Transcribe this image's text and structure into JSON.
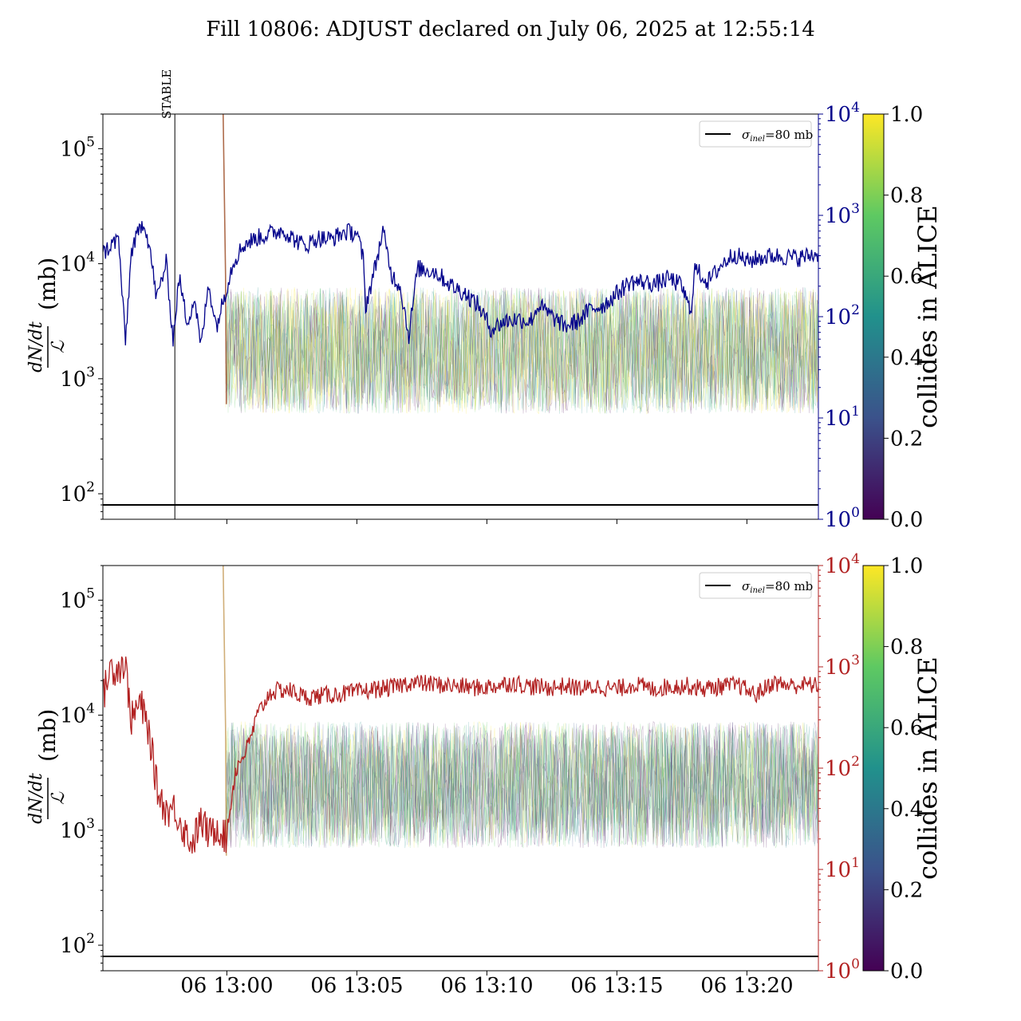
{
  "figure": {
    "title": "Fill 10806: ADJUST declared on July 06, 2025 at 12:55:14"
  },
  "colors": {
    "top_series": "#00008b",
    "bottom_series": "#b22222",
    "reference_line": "#000000",
    "colormap": [
      "#440154",
      "#3b528b",
      "#21918c",
      "#5ec962",
      "#fde725"
    ]
  },
  "chart_data": [
    {
      "type": "line",
      "panel": "top",
      "ylabel_num": "dN/dt",
      "ylabel_den": "ℒ",
      "ylabel_unit": "(mb)",
      "y_scale": "log",
      "ylim": [
        60,
        200000
      ],
      "y_ticks": [
        {
          "value": 100,
          "base": "10",
          "exp": "2"
        },
        {
          "value": 1000,
          "base": "10",
          "exp": "3"
        },
        {
          "value": 10000,
          "base": "10",
          "exp": "4"
        },
        {
          "value": 100000,
          "base": "10",
          "exp": "5"
        }
      ],
      "y2_scale": "log",
      "y2lim": [
        1,
        10000
      ],
      "y2_ticks": [
        {
          "value": 1,
          "base": "10",
          "exp": "0"
        },
        {
          "value": 10,
          "base": "10",
          "exp": "1"
        },
        {
          "value": 100,
          "base": "10",
          "exp": "2"
        },
        {
          "value": 1000,
          "base": "10",
          "exp": "3"
        },
        {
          "value": 10000,
          "base": "10",
          "exp": "4"
        }
      ],
      "xlim": [
        "12:55:14",
        "13:22:45"
      ],
      "x_ticks": [],
      "annotation": {
        "label": "STABLE",
        "x": "12:58:00"
      },
      "reference_line": {
        "y": 80,
        "legend": {
          "sigma": "σ",
          "sub": "inel",
          "rest": "=80 mb"
        }
      },
      "legend_placement": "top-right",
      "series": {
        "axis": "right",
        "points": [
          [
            "12:55:14",
            420
          ],
          [
            "12:55:50",
            600
          ],
          [
            "12:56:06",
            55
          ],
          [
            "12:56:20",
            450
          ],
          [
            "12:56:48",
            900
          ],
          [
            "12:57:02",
            480
          ],
          [
            "12:57:18",
            150
          ],
          [
            "12:57:40",
            340
          ],
          [
            "12:57:56",
            60
          ],
          [
            "12:58:10",
            240
          ],
          [
            "12:58:28",
            90
          ],
          [
            "12:58:46",
            150
          ],
          [
            "12:59:00",
            50
          ],
          [
            "12:59:18",
            210
          ],
          [
            "12:59:36",
            80
          ],
          [
            "12:59:56",
            170
          ],
          [
            "13:00:15",
            350
          ],
          [
            "13:00:40",
            520
          ],
          [
            "13:01:10",
            600
          ],
          [
            "13:01:40",
            660
          ],
          [
            "13:02:10",
            720
          ],
          [
            "13:02:30",
            600
          ],
          [
            "13:03:00",
            500
          ],
          [
            "13:03:30",
            600
          ],
          [
            "13:04:00",
            580
          ],
          [
            "13:04:30",
            680
          ],
          [
            "13:05:00",
            680
          ],
          [
            "13:05:15",
            360
          ],
          [
            "13:05:20",
            125
          ],
          [
            "13:05:40",
            280
          ],
          [
            "13:06:00",
            700
          ],
          [
            "13:06:20",
            260
          ],
          [
            "13:06:40",
            200
          ],
          [
            "13:07:00",
            65
          ],
          [
            "13:07:20",
            300
          ],
          [
            "13:08:00",
            280
          ],
          [
            "13:08:40",
            200
          ],
          [
            "13:09:10",
            170
          ],
          [
            "13:09:40",
            130
          ],
          [
            "13:10:10",
            75
          ],
          [
            "13:10:40",
            90
          ],
          [
            "13:11:10",
            95
          ],
          [
            "13:11:40",
            90
          ],
          [
            "13:12:00",
            130
          ],
          [
            "13:12:30",
            100
          ],
          [
            "13:13:00",
            80
          ],
          [
            "13:13:30",
            90
          ],
          [
            "13:14:00",
            120
          ],
          [
            "13:14:30",
            130
          ],
          [
            "13:15:00",
            170
          ],
          [
            "13:15:30",
            220
          ],
          [
            "13:16:00",
            220
          ],
          [
            "13:16:30",
            210
          ],
          [
            "13:17:00",
            240
          ],
          [
            "13:17:30",
            200
          ],
          [
            "13:17:50",
            110
          ],
          [
            "13:18:00",
            300
          ],
          [
            "13:18:30",
            220
          ],
          [
            "13:19:00",
            320
          ],
          [
            "13:19:30",
            420
          ],
          [
            "13:20:00",
            350
          ],
          [
            "13:20:30",
            380
          ],
          [
            "13:21:00",
            400
          ],
          [
            "13:21:30",
            390
          ],
          [
            "13:22:00",
            380
          ],
          [
            "13:22:45",
            420
          ]
        ]
      },
      "colorbar": {
        "label": "collides in ALICE",
        "range": [
          0,
          1
        ],
        "ticks": [
          "0.0",
          "0.2",
          "0.4",
          "0.6",
          "0.8",
          "1.0"
        ]
      }
    },
    {
      "type": "line",
      "panel": "bottom",
      "ylabel_num": "dN/dt",
      "ylabel_den": "ℒ",
      "ylabel_unit": "(mb)",
      "y_scale": "log",
      "ylim": [
        60,
        200000
      ],
      "y_ticks": [
        {
          "value": 100,
          "base": "10",
          "exp": "2"
        },
        {
          "value": 1000,
          "base": "10",
          "exp": "3"
        },
        {
          "value": 10000,
          "base": "10",
          "exp": "4"
        },
        {
          "value": 100000,
          "base": "10",
          "exp": "5"
        }
      ],
      "y2_scale": "log",
      "y2lim": [
        1,
        10000
      ],
      "y2_ticks": [
        {
          "value": 1,
          "base": "10",
          "exp": "0"
        },
        {
          "value": 10,
          "base": "10",
          "exp": "1"
        },
        {
          "value": 100,
          "base": "10",
          "exp": "2"
        },
        {
          "value": 1000,
          "base": "10",
          "exp": "3"
        },
        {
          "value": 10000,
          "base": "10",
          "exp": "4"
        }
      ],
      "xlim": [
        "12:55:14",
        "13:22:45"
      ],
      "x_ticks": [
        {
          "value": "13:00:00",
          "label": "06 13:00"
        },
        {
          "value": "13:05:00",
          "label": "06 13:05"
        },
        {
          "value": "13:10:00",
          "label": "06 13:10"
        },
        {
          "value": "13:15:00",
          "label": "06 13:15"
        },
        {
          "value": "13:20:00",
          "label": "06 13:20"
        }
      ],
      "reference_line": {
        "y": 80,
        "legend": {
          "sigma": "σ",
          "sub": "inel",
          "rest": "=80 mb"
        }
      },
      "legend_placement": "top-right",
      "series": {
        "axis": "right",
        "points": [
          [
            "12:55:14",
            500
          ],
          [
            "12:55:30",
            950
          ],
          [
            "12:55:50",
            980
          ],
          [
            "12:56:05",
            1100
          ],
          [
            "12:56:20",
            300
          ],
          [
            "12:56:40",
            450
          ],
          [
            "12:57:00",
            230
          ],
          [
            "12:57:20",
            60
          ],
          [
            "12:57:40",
            38
          ],
          [
            "12:58:00",
            40
          ],
          [
            "12:58:20",
            25
          ],
          [
            "12:58:40",
            18
          ],
          [
            "12:59:00",
            30
          ],
          [
            "12:59:20",
            22
          ],
          [
            "12:59:40",
            27
          ],
          [
            "12:59:58",
            20
          ],
          [
            "13:00:20",
            95
          ],
          [
            "13:00:50",
            170
          ],
          [
            "13:01:10",
            330
          ],
          [
            "13:01:40",
            560
          ],
          [
            "13:02:20",
            600
          ],
          [
            "13:03:00",
            500
          ],
          [
            "13:03:40",
            520
          ],
          [
            "13:04:20",
            540
          ],
          [
            "13:05:00",
            560
          ],
          [
            "13:05:40",
            600
          ],
          [
            "13:06:20",
            620
          ],
          [
            "13:07:00",
            700
          ],
          [
            "13:07:40",
            680
          ],
          [
            "13:08:20",
            660
          ],
          [
            "13:09:00",
            640
          ],
          [
            "13:09:40",
            620
          ],
          [
            "13:10:20",
            650
          ],
          [
            "13:11:00",
            700
          ],
          [
            "13:11:40",
            640
          ],
          [
            "13:12:20",
            620
          ],
          [
            "13:13:00",
            650
          ],
          [
            "13:13:40",
            610
          ],
          [
            "13:14:20",
            640
          ],
          [
            "13:15:00",
            600
          ],
          [
            "13:15:40",
            680
          ],
          [
            "13:16:20",
            600
          ],
          [
            "13:17:00",
            640
          ],
          [
            "13:17:40",
            650
          ],
          [
            "13:18:20",
            610
          ],
          [
            "13:19:00",
            640
          ],
          [
            "13:19:40",
            660
          ],
          [
            "13:20:20",
            530
          ],
          [
            "13:21:00",
            700
          ],
          [
            "13:21:40",
            650
          ],
          [
            "13:22:20",
            670
          ],
          [
            "13:22:45",
            640
          ]
        ]
      },
      "colorbar": {
        "label": "collides in ALICE",
        "range": [
          0,
          1
        ],
        "ticks": [
          "0.0",
          "0.2",
          "0.4",
          "0.6",
          "0.8",
          "1.0"
        ]
      }
    }
  ]
}
